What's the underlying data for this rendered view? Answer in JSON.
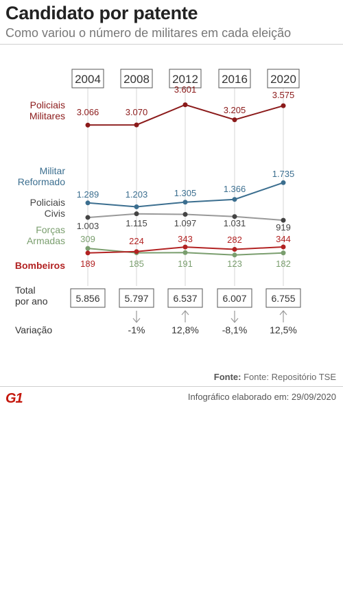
{
  "header": {
    "title": "Candidato por patente",
    "subtitle": "Como variou o número de militares em cada eleição"
  },
  "chart_data": {
    "type": "line",
    "x": [
      "2004",
      "2008",
      "2012",
      "2016",
      "2020"
    ],
    "series": [
      {
        "name": "Policiais Militares",
        "label_lines": [
          "Policiais",
          "Militares"
        ],
        "color": "#8b1a1a",
        "values": [
          3066,
          3070,
          3601,
          3205,
          3575
        ],
        "labels": [
          "3.066",
          "3.070",
          "3.601",
          "3.205",
          "3.575"
        ]
      },
      {
        "name": "Militar Reformado",
        "label_lines": [
          "Militar",
          "Reformado"
        ],
        "color": "#3b6e8f",
        "values": [
          1289,
          1203,
          1305,
          1366,
          1735
        ],
        "labels": [
          "1.289",
          "1.203",
          "1.305",
          "1.366",
          "1.735"
        ]
      },
      {
        "name": "Policiais Civis",
        "label_lines": [
          "Policiais",
          "Civis"
        ],
        "color": "#444444",
        "line_color": "#999999",
        "values": [
          1003,
          1115,
          1097,
          1031,
          919
        ],
        "labels": [
          "1.003",
          "1.115",
          "1.097",
          "1.031",
          "919"
        ]
      },
      {
        "name": "Forças Armadas",
        "label_lines": [
          "Forças",
          "Armadas"
        ],
        "color": "#7a9e6e",
        "values": [
          309,
          185,
          191,
          123,
          182
        ],
        "labels": [
          "309",
          "185",
          "191",
          "123",
          "182"
        ]
      },
      {
        "name": "Bombeiros",
        "label_lines": [
          "Bombeiros"
        ],
        "color": "#b22222",
        "values": [
          189,
          224,
          343,
          282,
          344
        ],
        "labels": [
          "189",
          "224",
          "343",
          "282",
          "344"
        ]
      }
    ],
    "totals": {
      "label_lines": [
        "Total",
        "por ano"
      ],
      "values": [
        5856,
        5797,
        6537,
        6007,
        6755
      ],
      "labels": [
        "5.856",
        "5.797",
        "6.537",
        "6.007",
        "6.755"
      ]
    },
    "variation": {
      "label": "Variação",
      "values": [
        null,
        -1,
        12.8,
        -8.1,
        12.5
      ],
      "labels": [
        "",
        "-1%",
        "12,8%",
        "-8,1%",
        "12,5%"
      ],
      "directions": [
        "",
        "down",
        "up",
        "down",
        "up"
      ]
    }
  },
  "footer": {
    "source_label": "Fonte:",
    "source_text": "Fonte: Repositório TSE",
    "date_label": "Infográfico elaborado em:",
    "date_value": "29/09/2020",
    "logo": "G1"
  }
}
